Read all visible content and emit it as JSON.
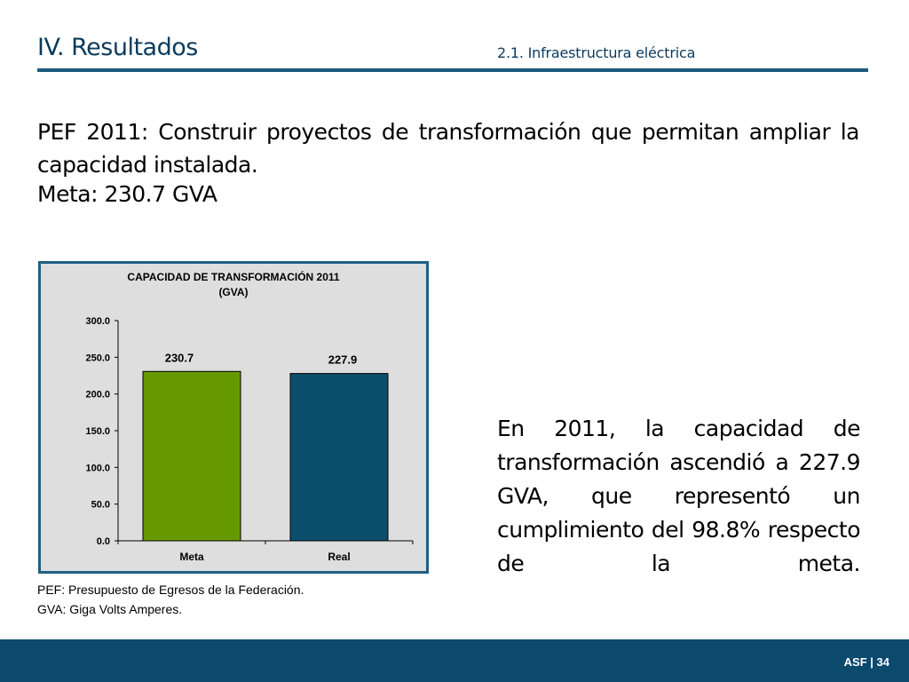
{
  "header": {
    "title": "IV. Resultados",
    "subtitle": "2.1. Infraestructura eléctrica"
  },
  "statement": {
    "text": "PEF 2011: Construir proyectos de transformación que permitan ampliar la capacidad instalada.",
    "goal": "Meta: 230.7 GVA"
  },
  "chart_data": {
    "type": "bar",
    "title": "CAPACIDAD DE TRANSFORMACIÓN 2011",
    "subtitle": "(GVA)",
    "categories": [
      "Meta",
      "Real"
    ],
    "values": [
      230.7,
      227.9
    ],
    "value_labels": [
      "230.7",
      "227.9"
    ],
    "bar_colors": [
      "#669900",
      "#0b4f6c"
    ],
    "ylim": [
      0,
      300
    ],
    "yticks": [
      "300.0",
      "250.0",
      "200.0",
      "150.0",
      "100.0",
      "50.0",
      "0.0"
    ],
    "grid": false,
    "background": "#dedede",
    "frame_color": "#1f5f84"
  },
  "footnotes": [
    "PEF: Presupuesto de Egresos de la Federación.",
    "GVA: Giga Volts Amperes."
  ],
  "summary": {
    "text": "En 2011, la capacidad de transformación ascendió a 227.9 GVA, que representó un cumplimiento del 98.8% respecto de la meta."
  },
  "footer": {
    "label": "ASF | 34",
    "color": "#0b4a6d"
  }
}
